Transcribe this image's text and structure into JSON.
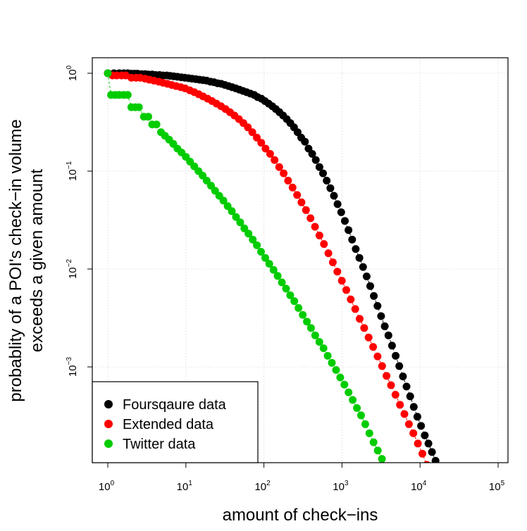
{
  "chart_data": {
    "type": "scatter",
    "xlabel": "amount of check−ins",
    "ylabel_lines": [
      "probablity of a POI's check−in volume",
      "exceeds a given amount"
    ],
    "x_scale": "log10",
    "y_scale": "log10",
    "xlim": [
      1,
      100000
    ],
    "ylim": [
      0.00011,
      1
    ],
    "x_ticks": [
      {
        "value": 1,
        "base": "10",
        "exp": "0"
      },
      {
        "value": 10,
        "base": "10",
        "exp": "1"
      },
      {
        "value": 100,
        "base": "10",
        "exp": "2"
      },
      {
        "value": 1000,
        "base": "10",
        "exp": "3"
      },
      {
        "value": 10000,
        "base": "10",
        "exp": "4"
      },
      {
        "value": 100000,
        "base": "10",
        "exp": "5"
      }
    ],
    "y_ticks": [
      {
        "value": 1,
        "base": "10",
        "exp": "0"
      },
      {
        "value": 0.1,
        "base": "10",
        "exp": "−1"
      },
      {
        "value": 0.01,
        "base": "10",
        "exp": "−2"
      },
      {
        "value": 0.001,
        "base": "10",
        "exp": "−3"
      }
    ],
    "grid": true,
    "legend_position": "bottom-left",
    "series": [
      {
        "name": "Foursqaure data",
        "color": "#000000",
        "points": [
          [
            1,
            1.0
          ],
          [
            1.2,
            1.0
          ],
          [
            1.4,
            1.0
          ],
          [
            1.6,
            1.0
          ],
          [
            1.8,
            1.0
          ],
          [
            2.0,
            0.99
          ],
          [
            2.2,
            0.99
          ],
          [
            2.4,
            0.99
          ],
          [
            2.7,
            0.98
          ],
          [
            3.0,
            0.98
          ],
          [
            3.3,
            0.97
          ],
          [
            3.7,
            0.97
          ],
          [
            4.1,
            0.96
          ],
          [
            4.6,
            0.96
          ],
          [
            5.1,
            0.95
          ],
          [
            5.7,
            0.95
          ],
          [
            6.3,
            0.94
          ],
          [
            7.0,
            0.93
          ],
          [
            7.8,
            0.92
          ],
          [
            8.7,
            0.91
          ],
          [
            9.7,
            0.9
          ],
          [
            10.8,
            0.89
          ],
          [
            12,
            0.88
          ],
          [
            13.4,
            0.87
          ],
          [
            14.9,
            0.86
          ],
          [
            16.6,
            0.85
          ],
          [
            18.5,
            0.84
          ],
          [
            20.6,
            0.82
          ],
          [
            22.9,
            0.81
          ],
          [
            25.5,
            0.79
          ],
          [
            28.4,
            0.78
          ],
          [
            31.6,
            0.76
          ],
          [
            35.2,
            0.74
          ],
          [
            39.2,
            0.72
          ],
          [
            43.6,
            0.7
          ],
          [
            48.5,
            0.68
          ],
          [
            54,
            0.66
          ],
          [
            60,
            0.64
          ],
          [
            67,
            0.62
          ],
          [
            75,
            0.6
          ],
          [
            83,
            0.57
          ],
          [
            93,
            0.55
          ],
          [
            103,
            0.52
          ],
          [
            115,
            0.49
          ],
          [
            128,
            0.46
          ],
          [
            142,
            0.43
          ],
          [
            158,
            0.4
          ],
          [
            176,
            0.37
          ],
          [
            196,
            0.34
          ],
          [
            218,
            0.31
          ],
          [
            243,
            0.28
          ],
          [
            270,
            0.25
          ],
          [
            300,
            0.22
          ],
          [
            335,
            0.2
          ],
          [
            373,
            0.17
          ],
          [
            415,
            0.15
          ],
          [
            462,
            0.13
          ],
          [
            514,
            0.11
          ],
          [
            572,
            0.095
          ],
          [
            637,
            0.08
          ],
          [
            709,
            0.067
          ],
          [
            789,
            0.056
          ],
          [
            878,
            0.046
          ],
          [
            977,
            0.038
          ],
          [
            1090,
            0.031
          ],
          [
            1210,
            0.025
          ],
          [
            1350,
            0.02
          ],
          [
            1500,
            0.016
          ],
          [
            1670,
            0.013
          ],
          [
            1860,
            0.0105
          ],
          [
            2070,
            0.0084
          ],
          [
            2300,
            0.0067
          ],
          [
            2560,
            0.0053
          ],
          [
            2850,
            0.0042
          ],
          [
            3170,
            0.0033
          ],
          [
            3530,
            0.0026
          ],
          [
            3930,
            0.0021
          ],
          [
            4370,
            0.00165
          ],
          [
            4870,
            0.0013
          ],
          [
            5420,
            0.00102
          ],
          [
            6030,
            0.0008
          ],
          [
            6710,
            0.00063
          ],
          [
            7470,
            0.0005
          ],
          [
            8310,
            0.00039
          ],
          [
            9250,
            0.00031
          ],
          [
            10300,
            0.00025
          ],
          [
            11500,
            0.0002
          ],
          [
            12800,
            0.000165
          ],
          [
            14200,
            0.000135
          ],
          [
            15800,
            0.00011
          ]
        ]
      },
      {
        "name": "Extended data",
        "color": "#ff0000",
        "points": [
          [
            1,
            1.0
          ],
          [
            1.15,
            0.95
          ],
          [
            1.3,
            0.95
          ],
          [
            1.5,
            0.95
          ],
          [
            1.7,
            0.95
          ],
          [
            2,
            0.9
          ],
          [
            2.3,
            0.9
          ],
          [
            2.6,
            0.9
          ],
          [
            3,
            0.88
          ],
          [
            3.4,
            0.86
          ],
          [
            3.9,
            0.84
          ],
          [
            4.5,
            0.82
          ],
          [
            5.1,
            0.8
          ],
          [
            5.8,
            0.78
          ],
          [
            6.6,
            0.76
          ],
          [
            7.5,
            0.74
          ],
          [
            8.6,
            0.72
          ],
          [
            9.8,
            0.7
          ],
          [
            11.2,
            0.67
          ],
          [
            12.8,
            0.64
          ],
          [
            14.6,
            0.61
          ],
          [
            16.6,
            0.58
          ],
          [
            19,
            0.55
          ],
          [
            21.6,
            0.52
          ],
          [
            24.7,
            0.49
          ],
          [
            28.2,
            0.46
          ],
          [
            32.2,
            0.43
          ],
          [
            36.7,
            0.4
          ],
          [
            41.9,
            0.37
          ],
          [
            47.8,
            0.34
          ],
          [
            54.5,
            0.31
          ],
          [
            62.2,
            0.28
          ],
          [
            71,
            0.25
          ],
          [
            81,
            0.22
          ],
          [
            92.4,
            0.195
          ],
          [
            105,
            0.17
          ],
          [
            120,
            0.15
          ],
          [
            137,
            0.13
          ],
          [
            157,
            0.11
          ],
          [
            179,
            0.095
          ],
          [
            204,
            0.08
          ],
          [
            233,
            0.068
          ],
          [
            266,
            0.057
          ],
          [
            303,
            0.048
          ],
          [
            346,
            0.04
          ],
          [
            395,
            0.033
          ],
          [
            451,
            0.027
          ],
          [
            514,
            0.022
          ],
          [
            587,
            0.018
          ],
          [
            670,
            0.0145
          ],
          [
            764,
            0.0117
          ],
          [
            872,
            0.0094
          ],
          [
            995,
            0.0076
          ],
          [
            1135,
            0.0061
          ],
          [
            1295,
            0.0049
          ],
          [
            1478,
            0.0039
          ],
          [
            1686,
            0.0031
          ],
          [
            1924,
            0.0025
          ],
          [
            2195,
            0.002
          ],
          [
            2505,
            0.0016
          ],
          [
            2858,
            0.00128
          ],
          [
            3261,
            0.00102
          ],
          [
            3721,
            0.00081
          ],
          [
            4246,
            0.00065
          ],
          [
            4845,
            0.00052
          ],
          [
            5528,
            0.00041
          ],
          [
            6308,
            0.00033
          ],
          [
            7198,
            0.00026
          ],
          [
            8213,
            0.00021
          ],
          [
            9371,
            0.000165
          ],
          [
            10700,
            0.00013
          ],
          [
            12200,
            0.0001
          ]
        ]
      },
      {
        "name": "Twitter data",
        "color": "#00cc00",
        "points": [
          [
            1,
            1.0
          ],
          [
            1.1,
            0.6
          ],
          [
            1.25,
            0.6
          ],
          [
            1.4,
            0.6
          ],
          [
            1.6,
            0.6
          ],
          [
            1.8,
            0.6
          ],
          [
            2,
            0.45
          ],
          [
            2.25,
            0.45
          ],
          [
            2.5,
            0.45
          ],
          [
            2.9,
            0.36
          ],
          [
            3.3,
            0.36
          ],
          [
            3.7,
            0.3
          ],
          [
            4.2,
            0.3
          ],
          [
            4.8,
            0.25
          ],
          [
            5.4,
            0.23
          ],
          [
            6.1,
            0.21
          ],
          [
            6.9,
            0.19
          ],
          [
            7.8,
            0.17
          ],
          [
            8.8,
            0.155
          ],
          [
            10,
            0.14
          ],
          [
            11.3,
            0.125
          ],
          [
            12.8,
            0.112
          ],
          [
            14.5,
            0.1
          ],
          [
            16.4,
            0.09
          ],
          [
            18.5,
            0.08
          ],
          [
            21,
            0.071
          ],
          [
            23.7,
            0.063
          ],
          [
            26.8,
            0.056
          ],
          [
            30.3,
            0.05
          ],
          [
            34.3,
            0.044
          ],
          [
            38.8,
            0.039
          ],
          [
            43.9,
            0.034
          ],
          [
            49.6,
            0.03
          ],
          [
            56.1,
            0.026
          ],
          [
            63.5,
            0.023
          ],
          [
            71.8,
            0.02
          ],
          [
            81.2,
            0.0175
          ],
          [
            91.8,
            0.015
          ],
          [
            104,
            0.013
          ],
          [
            117,
            0.0113
          ],
          [
            133,
            0.0098
          ],
          [
            150,
            0.0085
          ],
          [
            170,
            0.0073
          ],
          [
            192,
            0.0063
          ],
          [
            217,
            0.0054
          ],
          [
            245,
            0.0047
          ],
          [
            277,
            0.004
          ],
          [
            314,
            0.0034
          ],
          [
            355,
            0.0029
          ],
          [
            401,
            0.0025
          ],
          [
            454,
            0.0021
          ],
          [
            513,
            0.0018
          ],
          [
            580,
            0.00155
          ],
          [
            656,
            0.0013
          ],
          [
            742,
            0.0011
          ],
          [
            839,
            0.00093
          ],
          [
            949,
            0.00078
          ],
          [
            1073,
            0.00066
          ],
          [
            1213,
            0.00055
          ],
          [
            1372,
            0.00046
          ],
          [
            1552,
            0.00038
          ],
          [
            1755,
            0.00032
          ],
          [
            1985,
            0.00026
          ],
          [
            2245,
            0.00021
          ],
          [
            2539,
            0.00017
          ],
          [
            2871,
            0.00014
          ],
          [
            3247,
            0.000115
          ]
        ]
      }
    ]
  }
}
